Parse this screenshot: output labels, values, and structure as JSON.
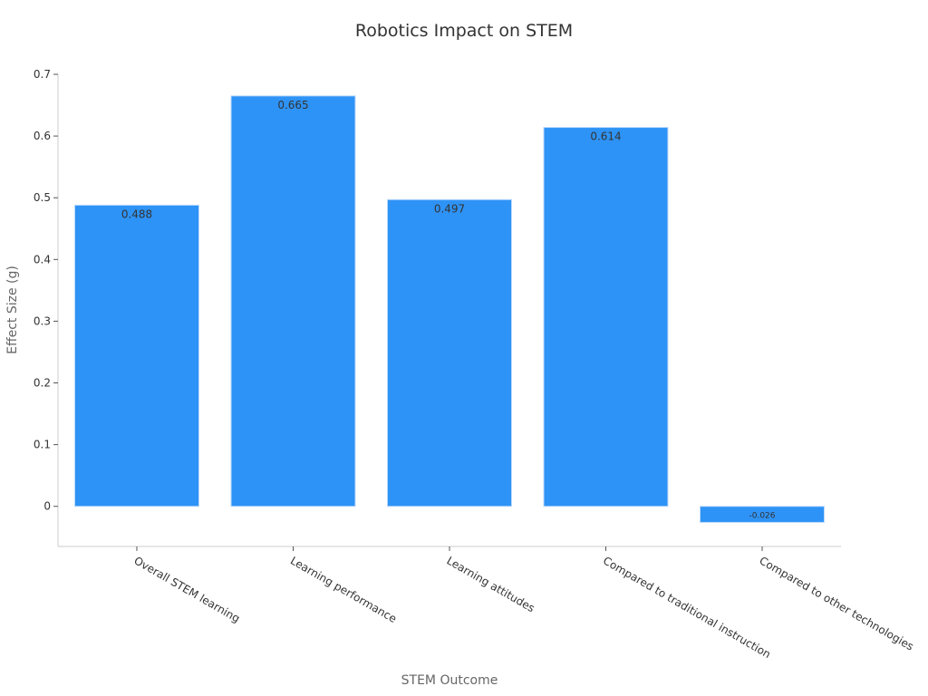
{
  "chart_data": {
    "type": "bar",
    "title": "Robotics Impact on STEM",
    "xlabel": "STEM Outcome",
    "ylabel": "Effect Size (g)",
    "categories": [
      "Overall STEM learning",
      "Learning performance",
      "Learning attitudes",
      "Compared to traditional instruction",
      "Compared to other technologies"
    ],
    "values": [
      0.488,
      0.665,
      0.497,
      0.614,
      -0.026
    ],
    "data_labels": [
      "0.488",
      "0.665",
      "0.497",
      "0.614",
      "-0.026"
    ],
    "yticks": [
      0,
      0.1,
      0.2,
      0.3,
      0.4,
      0.5,
      0.6,
      0.7
    ],
    "ytick_labels": [
      "0",
      "0.1",
      "0.2",
      "0.3",
      "0.4",
      "0.5",
      "0.6",
      "0.7"
    ],
    "ylim": [
      -0.065,
      0.7
    ],
    "grid": false,
    "legend": "none",
    "colors": {
      "bar": "#2e93f6"
    }
  }
}
